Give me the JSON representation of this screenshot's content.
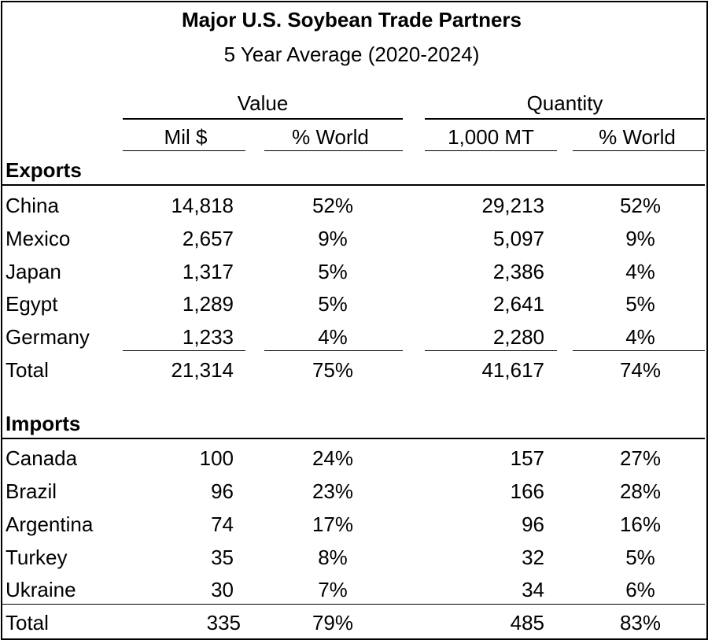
{
  "title": "Major U.S. Soybean Trade Partners",
  "subtitle": "5 Year Average (2020-2024)",
  "groups": {
    "value": "Value",
    "quantity": "Quantity"
  },
  "columns": {
    "mil": "Mil $",
    "pct_world_value": "% World",
    "mt": "1,000 MT",
    "pct_world_qty": "% World"
  },
  "exports": {
    "label": "Exports",
    "rows": [
      {
        "name": "China",
        "value": "14,818",
        "value_pct": "52%",
        "qty": "29,213",
        "qty_pct": "52%"
      },
      {
        "name": "Mexico",
        "value": "2,657",
        "value_pct": "9%",
        "qty": "5,097",
        "qty_pct": "9%"
      },
      {
        "name": "Japan",
        "value": "1,317",
        "value_pct": "5%",
        "qty": "2,386",
        "qty_pct": "4%"
      },
      {
        "name": "Egypt",
        "value": "1,289",
        "value_pct": "5%",
        "qty": "2,641",
        "qty_pct": "5%"
      },
      {
        "name": "Germany",
        "value": "1,233",
        "value_pct": "4%",
        "qty": "2,280",
        "qty_pct": "4%"
      }
    ],
    "total": {
      "name": "Total",
      "value": "21,314",
      "value_pct": "75%",
      "qty": "41,617",
      "qty_pct": "74%"
    }
  },
  "imports": {
    "label": "Imports",
    "rows": [
      {
        "name": "Canada",
        "value": "100",
        "value_pct": "24%",
        "qty": "157",
        "qty_pct": "27%"
      },
      {
        "name": "Brazil",
        "value": "96",
        "value_pct": "23%",
        "qty": "166",
        "qty_pct": "28%"
      },
      {
        "name": "Argentina",
        "value": "74",
        "value_pct": "17%",
        "qty": "96",
        "qty_pct": "16%"
      },
      {
        "name": "Turkey",
        "value": "35",
        "value_pct": "8%",
        "qty": "32",
        "qty_pct": "5%"
      },
      {
        "name": "Ukraine",
        "value": "30",
        "value_pct": "7%",
        "qty": "34",
        "qty_pct": "6%"
      }
    ],
    "total": {
      "name": "Total",
      "value": "335",
      "value_pct": "79%",
      "qty": "485",
      "qty_pct": "83%"
    }
  }
}
